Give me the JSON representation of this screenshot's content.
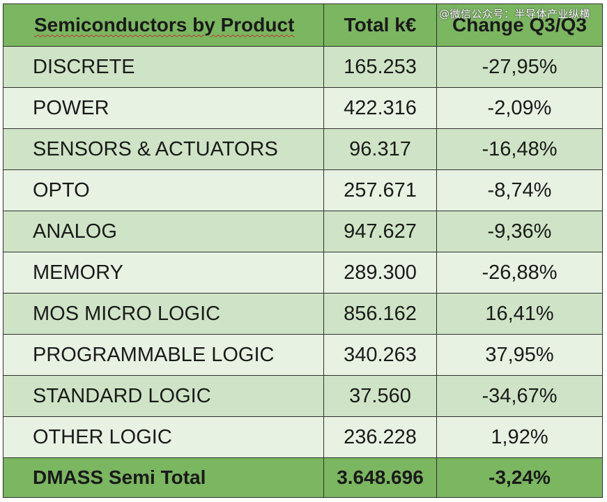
{
  "table": {
    "headers": {
      "product": "Semiconductors by Product",
      "total": "Total k€",
      "change": "Change Q3/Q3"
    },
    "rows": [
      {
        "product": "DISCRETE",
        "total": "165.253",
        "change": "-27,95%"
      },
      {
        "product": "POWER",
        "total": "422.316",
        "change": "-2,09%"
      },
      {
        "product": "SENSORS & ACTUATORS",
        "total": "96.317",
        "change": "-16,48%"
      },
      {
        "product": "OPTO",
        "total": "257.671",
        "change": "-8,74%"
      },
      {
        "product": "ANALOG",
        "total": "947.627",
        "change": "-9,36%"
      },
      {
        "product": "MEMORY",
        "total": "289.300",
        "change": "-26,88%"
      },
      {
        "product": "MOS MICRO LOGIC",
        "total": "856.162",
        "change": "16,41%"
      },
      {
        "product": "PROGRAMMABLE LOGIC",
        "total": "340.263",
        "change": "37,95%"
      },
      {
        "product": "STANDARD LOGIC",
        "total": "37.560",
        "change": "-34,67%"
      },
      {
        "product": "OTHER LOGIC",
        "total": "236.228",
        "change": "1,92%"
      }
    ],
    "total_row": {
      "product": "DMASS Semi Total",
      "total": "3.648.696",
      "change": "-3,24%"
    }
  },
  "watermark": "@微信公众号：半导体产业纵横",
  "colors": {
    "header_green": "#7bb661",
    "row_dark": "#cfe4c6",
    "row_light": "#e8f2e3",
    "border": "#2f2f2f"
  }
}
